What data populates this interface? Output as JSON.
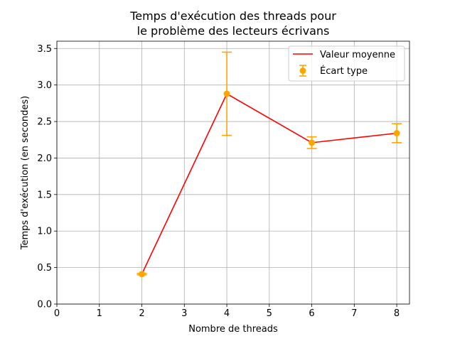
{
  "chart_data": {
    "type": "line",
    "title_lines": [
      "Temps d'exécution des threads pour",
      "le problème des lecteurs écrivans"
    ],
    "xlabel": "Nombre de threads",
    "ylabel": "Temps d'exécution (en secondes)",
    "xlim": [
      0,
      8.3
    ],
    "ylim": [
      0,
      3.6
    ],
    "xticks": [
      0,
      1,
      2,
      3,
      4,
      5,
      6,
      7,
      8
    ],
    "yticks": [
      0.0,
      0.5,
      1.0,
      1.5,
      2.0,
      2.5,
      3.0,
      3.5
    ],
    "xtick_labels": [
      "0",
      "1",
      "2",
      "3",
      "4",
      "5",
      "6",
      "7",
      "8"
    ],
    "ytick_labels": [
      "0.0",
      "0.5",
      "1.0",
      "1.5",
      "2.0",
      "2.5",
      "3.0",
      "3.5"
    ],
    "grid": true,
    "legend_position": "top-right",
    "series": [
      {
        "name": "Valeur moyenne",
        "color": "#ff0000",
        "x": [
          2,
          4,
          6,
          8
        ],
        "y": [
          0.41,
          2.88,
          2.21,
          2.34
        ]
      },
      {
        "name": "Écart type",
        "color": "#ffa500",
        "kind": "errorbar",
        "x": [
          2,
          4,
          6,
          8
        ],
        "y": [
          0.41,
          2.88,
          2.21,
          2.34
        ],
        "err": [
          0.01,
          0.57,
          0.08,
          0.13
        ]
      }
    ]
  }
}
